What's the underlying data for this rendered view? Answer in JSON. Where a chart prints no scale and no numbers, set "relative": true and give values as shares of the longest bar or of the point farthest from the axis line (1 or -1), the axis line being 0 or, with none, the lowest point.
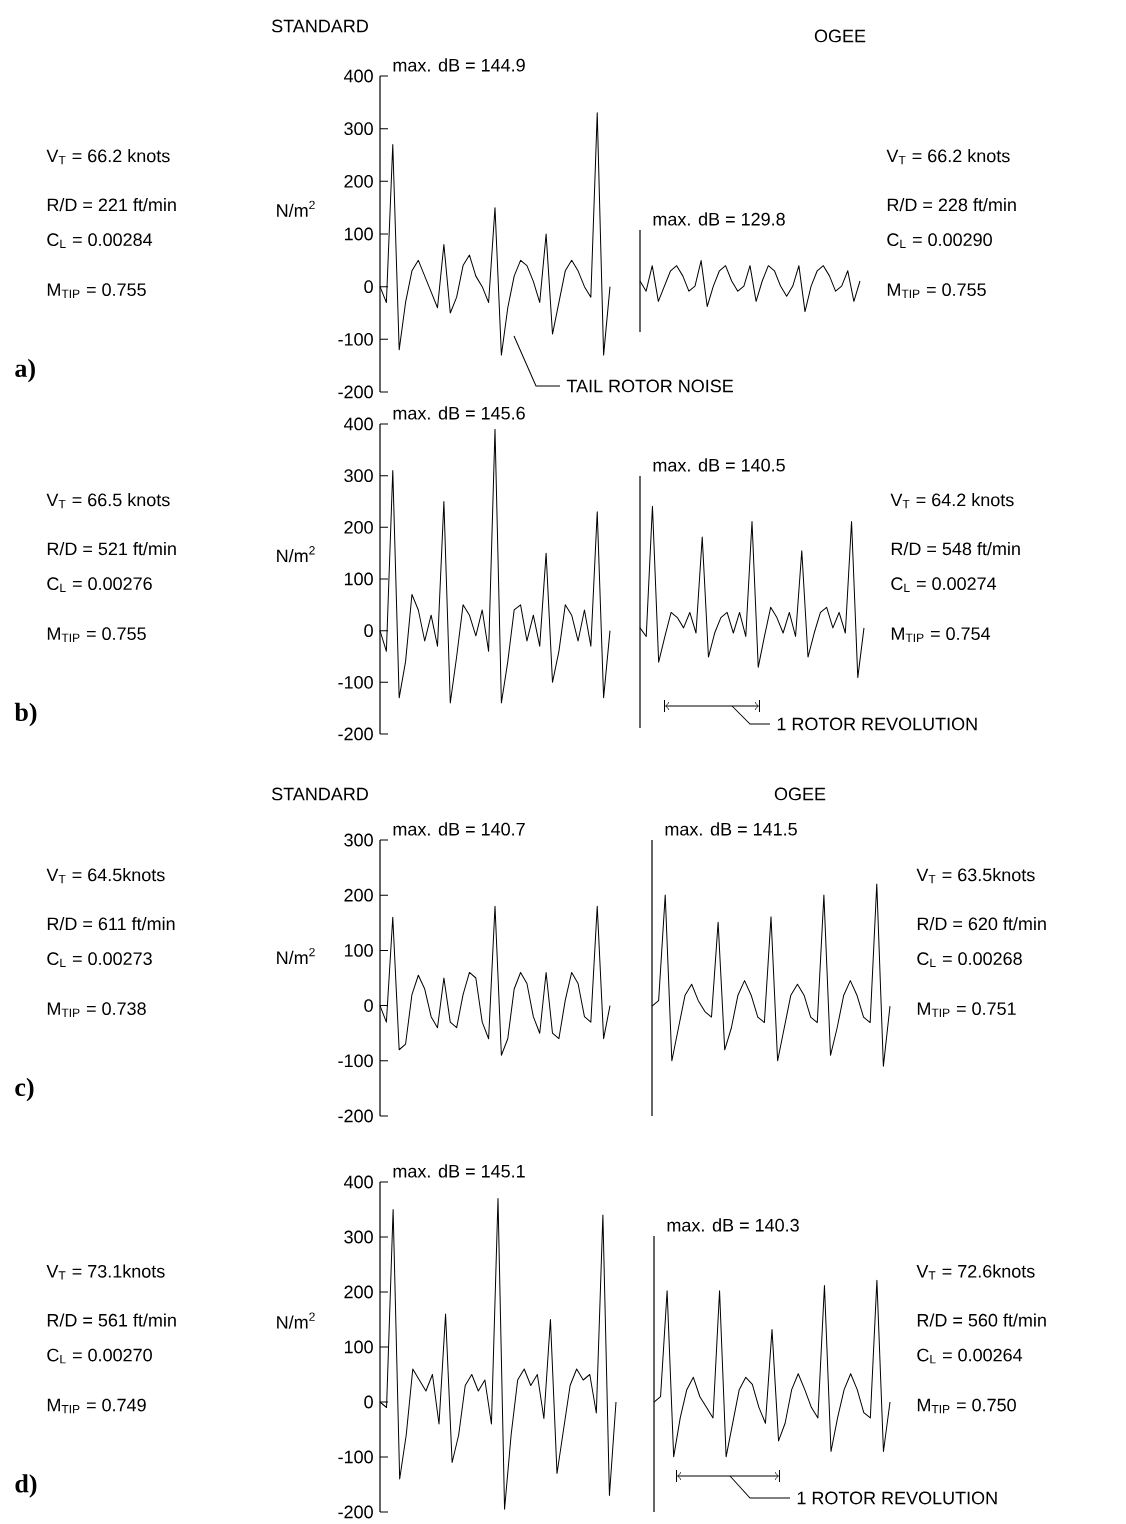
{
  "chart_data": [
    {
      "type": "line",
      "title": "STANDARD",
      "ylabel": "N/m$^{2}$",
      "color": "#000000",
      "ylim": [
        -200,
        400
      ],
      "yticks": [
        400,
        300,
        200,
        100,
        0,
        -100,
        -200
      ],
      "categories": [
        null,
        null,
        null,
        null,
        null,
        null,
        null,
        null,
        null,
        null,
        null,
        null,
        null,
        null,
        null,
        null,
        null,
        null,
        null,
        null,
        null,
        null,
        null,
        null,
        null,
        null,
        null,
        null,
        null,
        null,
        null,
        null,
        null,
        null,
        null,
        null,
        null
      ],
      "values": [
        0,
        -30,
        270,
        -120,
        -30,
        30,
        50,
        20,
        -10,
        -40,
        80,
        -50,
        -20,
        40,
        60,
        20,
        0,
        -30,
        150,
        -130,
        -40,
        20,
        50,
        40,
        10,
        -30,
        100,
        -90,
        -30,
        30,
        50,
        30,
        0,
        -20,
        330,
        -130,
        0
      ],
      "annotations": [
        "max. dB = 144.9",
        "V$_{T}$ = 66.2 knots",
        "R/D = 221 ft/min",
        "C$_{L}$ = 0.00284",
        "M$_{TIP}$ = 0.755",
        "a)",
        "TAIL ROTOR NOISE"
      ]
    },
    {
      "type": "line",
      "title": "OGEE",
      "color": "#000000",
      "relative": true,
      "categories": [
        null,
        null,
        null,
        null,
        null,
        null,
        null,
        null,
        null,
        null,
        null,
        null,
        null,
        null,
        null,
        null,
        null,
        null,
        null,
        null,
        null,
        null,
        null,
        null,
        null,
        null,
        null,
        null,
        null,
        null,
        null,
        null,
        null,
        null,
        null,
        null,
        null
      ],
      "values": [
        0.6,
        0.4,
        0.9,
        0.2,
        0.5,
        0.8,
        0.9,
        0.7,
        0.4,
        0.5,
        1,
        0.1,
        0.5,
        0.8,
        0.9,
        0.6,
        0.4,
        0.5,
        0.9,
        0.2,
        0.6,
        0.9,
        0.8,
        0.5,
        0.3,
        0.5,
        0.9,
        0,
        0.5,
        0.8,
        0.9,
        0.7,
        0.4,
        0.5,
        0.8,
        0.2,
        0.6
      ],
      "annotations": [
        "max. dB = 129.8",
        "V$_{T}$ = 66.2 knots",
        "R/D = 228 ft/min",
        "C$_{L}$ = 0.00290",
        "M$_{TIP}$ = 0.755"
      ]
    },
    {
      "type": "line",
      "ylabel": "N/m$^{2}$",
      "color": "#000000",
      "ylim": [
        -200,
        400
      ],
      "yticks": [
        400,
        300,
        200,
        100,
        0,
        -100,
        -200
      ],
      "categories": [
        null,
        null,
        null,
        null,
        null,
        null,
        null,
        null,
        null,
        null,
        null,
        null,
        null,
        null,
        null,
        null,
        null,
        null,
        null,
        null,
        null,
        null,
        null,
        null,
        null,
        null,
        null,
        null,
        null,
        null,
        null,
        null,
        null,
        null,
        null,
        null,
        null
      ],
      "values": [
        0,
        -40,
        310,
        -130,
        -60,
        70,
        40,
        -20,
        30,
        -30,
        250,
        -140,
        -50,
        50,
        30,
        -10,
        40,
        -40,
        390,
        -140,
        -60,
        40,
        50,
        -20,
        30,
        -30,
        150,
        -100,
        -40,
        50,
        30,
        -20,
        40,
        -30,
        230,
        -130,
        0
      ],
      "annotations": [
        "max. dB = 145.6",
        "V$_{T}$ = 66.5 knots",
        "R/D = 521 ft/min",
        "C$_{L}$ = 0.00276",
        "M$_{TIP}$ = 0.755",
        "b)"
      ]
    },
    {
      "type": "line",
      "color": "#000000",
      "relative": true,
      "categories": [
        null,
        null,
        null,
        null,
        null,
        null,
        null,
        null,
        null,
        null,
        null,
        null,
        null,
        null,
        null,
        null,
        null,
        null,
        null,
        null,
        null,
        null,
        null,
        null,
        null,
        null,
        null,
        null,
        null,
        null,
        null,
        null,
        null,
        null,
        null,
        null,
        null
      ],
      "values": [
        0.29,
        0.24,
        1,
        0.09,
        0.24,
        0.38,
        0.35,
        0.29,
        0.38,
        0.26,
        0.82,
        0.12,
        0.26,
        0.35,
        0.38,
        0.26,
        0.38,
        0.24,
        0.91,
        0.06,
        0.24,
        0.41,
        0.35,
        0.26,
        0.38,
        0.24,
        0.74,
        0.12,
        0.26,
        0.38,
        0.41,
        0.29,
        0.38,
        0.26,
        0.91,
        0,
        0.29
      ],
      "annotations": [
        "max. dB = 140.5",
        "V$_{T}$ = 64.2 knots",
        "R/D = 548 ft/min",
        "C$_{L}$ = 0.00274",
        "M$_{TIP}$ = 0.754",
        "1 ROTOR REVOLUTION"
      ]
    },
    {
      "type": "line",
      "title": "STANDARD",
      "ylabel": "N/m$^{2}$",
      "color": "#000000",
      "ylim": [
        -200,
        300
      ],
      "yticks": [
        300,
        200,
        100,
        0,
        -100,
        -200
      ],
      "categories": [
        null,
        null,
        null,
        null,
        null,
        null,
        null,
        null,
        null,
        null,
        null,
        null,
        null,
        null,
        null,
        null,
        null,
        null,
        null,
        null,
        null,
        null,
        null,
        null,
        null,
        null,
        null,
        null,
        null,
        null,
        null,
        null,
        null,
        null,
        null,
        null,
        null
      ],
      "values": [
        0,
        -30,
        160,
        -80,
        -70,
        20,
        55,
        30,
        -20,
        -40,
        50,
        -30,
        -40,
        20,
        60,
        50,
        -30,
        -60,
        180,
        -90,
        -60,
        30,
        60,
        40,
        -20,
        -50,
        60,
        -50,
        -60,
        10,
        60,
        40,
        -20,
        -30,
        180,
        -60,
        0
      ],
      "annotations": [
        "max. dB = 140.7",
        "V$_{T}$ = 64.5knots",
        "R/D = 611 ft/min",
        "C$_{L}$ = 0.00273",
        "M$_{TIP}$ = 0.738",
        "c)"
      ]
    },
    {
      "type": "line",
      "title": "OGEE",
      "color": "#000000",
      "relative": true,
      "categories": [
        null,
        null,
        null,
        null,
        null,
        null,
        null,
        null,
        null,
        null,
        null,
        null,
        null,
        null,
        null,
        null,
        null,
        null,
        null,
        null,
        null,
        null,
        null,
        null,
        null,
        null,
        null,
        null,
        null,
        null,
        null,
        null,
        null,
        null,
        null,
        null,
        null
      ],
      "values": [
        0.33,
        0.36,
        0.94,
        0.03,
        0.21,
        0.39,
        0.45,
        0.36,
        0.3,
        0.27,
        0.79,
        0.09,
        0.21,
        0.39,
        0.47,
        0.39,
        0.27,
        0.24,
        0.82,
        0.03,
        0.21,
        0.39,
        0.45,
        0.39,
        0.27,
        0.24,
        0.94,
        0.06,
        0.21,
        0.39,
        0.47,
        0.39,
        0.27,
        0.24,
        1,
        0,
        0.33
      ],
      "annotations": [
        "max. dB = 141.5",
        "V$_{T}$ = 63.5knots",
        "R/D = 620 ft/min",
        "C$_{L}$ = 0.00268",
        "M$_{TIP}$ = 0.751"
      ]
    },
    {
      "type": "line",
      "ylabel": "N/m$^{2}$",
      "color": "#000000",
      "ylim": [
        -200,
        400
      ],
      "yticks": [
        400,
        300,
        200,
        100,
        0,
        -100,
        -200
      ],
      "categories": [
        null,
        null,
        null,
        null,
        null,
        null,
        null,
        null,
        null,
        null,
        null,
        null,
        null,
        null,
        null,
        null,
        null,
        null,
        null,
        null,
        null,
        null,
        null,
        null,
        null,
        null,
        null,
        null,
        null,
        null,
        null,
        null,
        null,
        null,
        null,
        null,
        null
      ],
      "values": [
        0,
        -10,
        350,
        -140,
        -60,
        60,
        40,
        20,
        50,
        -40,
        160,
        -110,
        -60,
        30,
        50,
        20,
        40,
        -40,
        370,
        -195,
        -60,
        40,
        60,
        30,
        50,
        -30,
        150,
        -130,
        -50,
        30,
        60,
        40,
        50,
        -20,
        340,
        -170,
        0
      ],
      "annotations": [
        "max. dB = 145.1",
        "V$_{T}$ = 73.1knots",
        "R/D = 561 ft/min",
        "C$_{L}$ = 0.00270",
        "M$_{TIP}$ = 0.749",
        "d)"
      ]
    },
    {
      "type": "line",
      "color": "#000000",
      "relative": true,
      "categories": [
        null,
        null,
        null,
        null,
        null,
        null,
        null,
        null,
        null,
        null,
        null,
        null,
        null,
        null,
        null,
        null,
        null,
        null,
        null,
        null,
        null,
        null,
        null,
        null,
        null,
        null,
        null,
        null,
        null,
        null,
        null,
        null,
        null,
        null,
        null,
        null,
        null
      ],
      "values": [
        0.31,
        0.34,
        0.94,
        0,
        0.22,
        0.38,
        0.45,
        0.34,
        0.28,
        0.22,
        0.94,
        0,
        0.19,
        0.38,
        0.45,
        0.41,
        0.28,
        0.19,
        0.72,
        0.09,
        0.19,
        0.38,
        0.47,
        0.38,
        0.28,
        0.22,
        0.97,
        0.03,
        0.22,
        0.38,
        0.47,
        0.38,
        0.25,
        0.22,
        1,
        0.03,
        0.31
      ],
      "annotations": [
        "max. dB = 140.3",
        "V$_{T}$ = 72.6knots",
        "R/D = 560 ft/min",
        "C$_{L}$ = 0.00264",
        "M$_{TIP}$ = 0.750",
        "1 ROTOR REVOLUTION"
      ]
    }
  ]
}
